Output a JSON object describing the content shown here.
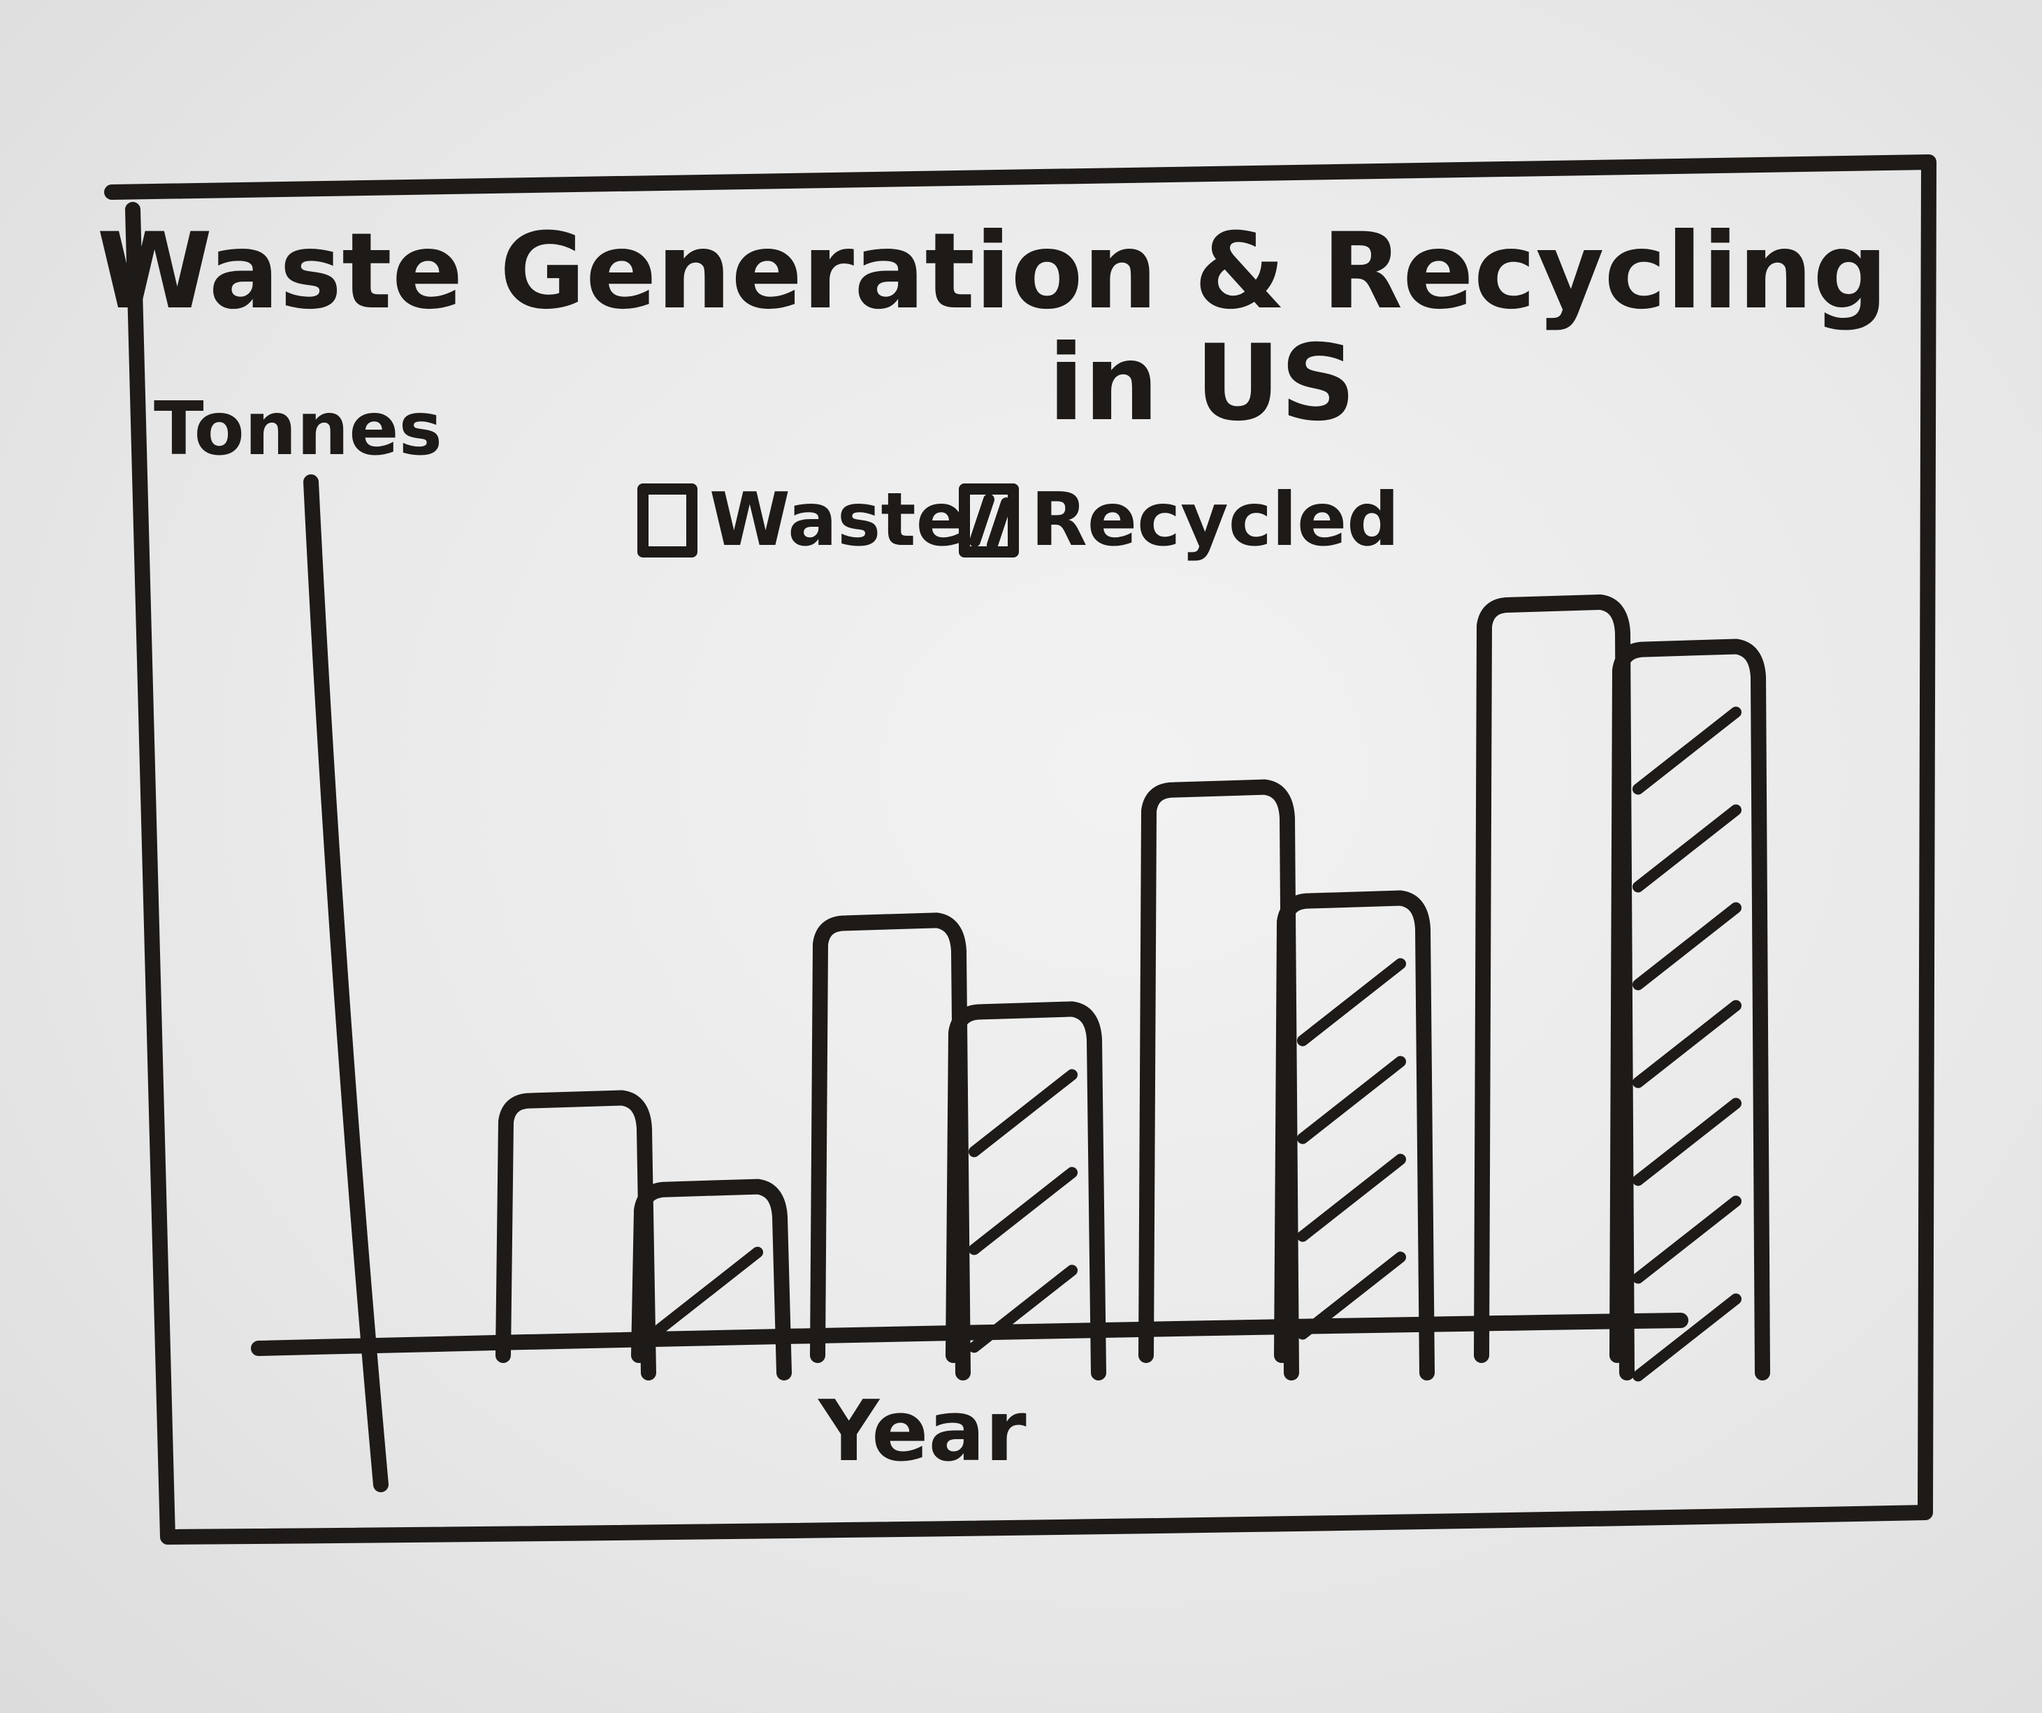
{
  "chart_data": {
    "type": "bar",
    "title": "Waste Generation & Recycling",
    "subtitle": "in US",
    "xlabel": "Year",
    "ylabel": "Tonnes",
    "legend_position": "top-center",
    "categories": [
      "",
      "",
      "",
      ""
    ],
    "ylim": [
      0,
      110
    ],
    "grid": false,
    "series": [
      {
        "name": "Waste",
        "values": [
          33,
          57,
          75,
          100
        ],
        "pattern": "none"
      },
      {
        "name": "Recycled",
        "values": [
          21,
          45,
          60,
          94
        ],
        "pattern": "hatched"
      }
    ],
    "colors": {
      "ink": "#1d1a18",
      "board": "#ececec"
    }
  }
}
